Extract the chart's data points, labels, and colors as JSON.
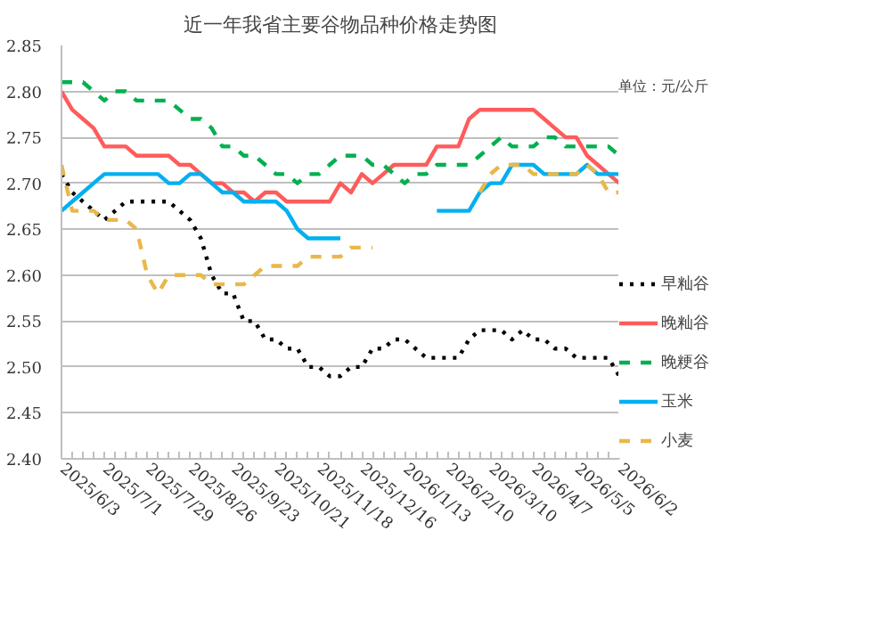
{
  "chart_data": {
    "type": "line",
    "title": "近一年我省主要谷物品种价格走势图",
    "categories": [
      "2025/6/3",
      null,
      null,
      null,
      "2025/7/1",
      null,
      null,
      null,
      "2025/7/29",
      null,
      null,
      null,
      "2025/8/26",
      null,
      null,
      null,
      "2025/9/23",
      null,
      null,
      null,
      "2025/10/21",
      null,
      null,
      null,
      "2025/11/18",
      null,
      null,
      null,
      "2025/12/16",
      null,
      null,
      null,
      "2026/1/13",
      null,
      null,
      null,
      "2026/2/10",
      null,
      null,
      null,
      "2026/3/10",
      null,
      null,
      null,
      "2026/4/7",
      null,
      null,
      null,
      "2026/5/5",
      null,
      null,
      null,
      "2026/6/2"
    ],
    "series": [
      {
        "name": "早籼谷",
        "color": "#000000",
        "line_style": "dotted",
        "values": [
          2.71,
          2.69,
          2.68,
          2.67,
          2.66,
          2.67,
          2.68,
          2.68,
          2.68,
          2.68,
          2.68,
          2.67,
          2.66,
          2.64,
          2.6,
          2.58,
          2.58,
          2.55,
          2.55,
          2.53,
          2.53,
          2.52,
          2.52,
          2.5,
          2.5,
          2.49,
          2.49,
          2.5,
          2.5,
          2.52,
          2.52,
          2.53,
          2.53,
          2.52,
          2.51,
          2.51,
          2.51,
          2.51,
          2.53,
          2.54,
          2.54,
          2.54,
          2.53,
          2.54,
          2.53,
          2.53,
          2.52,
          2.52,
          2.51,
          2.51,
          2.51,
          2.51,
          2.49
        ]
      },
      {
        "name": "晚籼谷",
        "color": "#ff5b5b",
        "line_style": "solid",
        "values": [
          2.8,
          2.78,
          2.77,
          2.76,
          2.74,
          2.74,
          2.74,
          2.73,
          2.73,
          2.73,
          2.73,
          2.72,
          2.72,
          2.71,
          2.7,
          2.7,
          2.69,
          2.69,
          2.68,
          2.69,
          2.69,
          2.68,
          2.68,
          2.68,
          2.68,
          2.68,
          2.7,
          2.69,
          2.71,
          2.7,
          2.71,
          2.72,
          2.72,
          2.72,
          2.72,
          2.74,
          2.74,
          2.74,
          2.77,
          2.78,
          2.78,
          2.78,
          2.78,
          2.78,
          2.78,
          2.77,
          2.76,
          2.75,
          2.75,
          2.73,
          2.72,
          2.71,
          2.7
        ]
      },
      {
        "name": "晚粳谷",
        "color": "#00b050",
        "line_style": "dashed",
        "values": [
          2.81,
          2.81,
          2.81,
          2.8,
          2.79,
          2.8,
          2.8,
          2.79,
          2.79,
          2.79,
          2.79,
          2.78,
          2.77,
          2.77,
          2.76,
          2.74,
          2.74,
          2.73,
          2.73,
          2.72,
          2.71,
          2.71,
          2.7,
          2.71,
          2.71,
          2.72,
          2.73,
          2.73,
          2.73,
          2.72,
          2.72,
          2.71,
          2.7,
          2.71,
          2.71,
          2.72,
          2.72,
          2.72,
          2.72,
          2.73,
          2.74,
          2.75,
          2.74,
          2.74,
          2.74,
          2.75,
          2.75,
          2.74,
          2.74,
          2.74,
          2.74,
          2.74,
          2.73
        ]
      },
      {
        "name": "玉米",
        "color": "#00b0f0",
        "line_style": "solid",
        "values": [
          2.67,
          2.68,
          2.69,
          2.7,
          2.71,
          2.71,
          2.71,
          2.71,
          2.71,
          2.71,
          2.7,
          2.7,
          2.71,
          2.71,
          2.7,
          2.69,
          2.69,
          2.68,
          2.68,
          2.68,
          2.68,
          2.67,
          2.65,
          2.64,
          2.64,
          2.64,
          2.64,
          null,
          null,
          null,
          null,
          null,
          null,
          null,
          null,
          2.67,
          2.67,
          2.67,
          2.67,
          2.69,
          2.7,
          2.7,
          2.72,
          2.72,
          2.72,
          2.71,
          2.71,
          2.71,
          2.71,
          2.72,
          2.71,
          2.71,
          2.71
        ]
      },
      {
        "name": "小麦",
        "color": "#e8b84a",
        "line_style": "dashed",
        "values": [
          2.72,
          2.67,
          2.67,
          2.67,
          2.66,
          2.66,
          2.66,
          2.65,
          2.6,
          2.58,
          2.6,
          2.6,
          2.6,
          2.6,
          2.59,
          2.59,
          2.59,
          2.59,
          2.6,
          2.61,
          2.61,
          2.61,
          2.61,
          2.62,
          2.62,
          2.62,
          2.62,
          2.63,
          2.63,
          2.63,
          null,
          null,
          null,
          null,
          null,
          null,
          null,
          null,
          null,
          2.69,
          2.71,
          2.72,
          2.72,
          2.72,
          2.71,
          2.71,
          2.71,
          2.71,
          2.71,
          2.72,
          2.71,
          2.69,
          2.69
        ]
      }
    ],
    "ylim": [
      2.4,
      2.85
    ],
    "yticks": [
      {
        "value": 2.4,
        "label": "2.40"
      },
      2.45,
      {
        "value": 2.5,
        "label": "2.50"
      },
      2.55,
      {
        "value": 2.6,
        "label": "2.60"
      },
      2.65,
      {
        "value": 2.7,
        "label": "2.70"
      },
      2.75,
      {
        "value": 2.8,
        "label": "2.80"
      },
      2.85
    ],
    "grid": "y",
    "legend": "right",
    "marker": "none",
    "annotations": [
      "单位：元/公斤"
    ]
  }
}
